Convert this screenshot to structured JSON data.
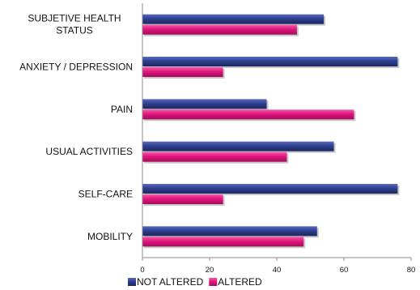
{
  "chart_data": {
    "type": "bar",
    "orientation": "horizontal",
    "title": "",
    "xlabel": "",
    "ylabel": "",
    "categories": [
      [
        "SUBJETIVE HEALTH",
        "STATUS"
      ],
      [
        "ANXIETY / DEPRESSION"
      ],
      [
        "PAIN"
      ],
      [
        "USUAL ACTIVITIES"
      ],
      [
        "SELF-CARE"
      ],
      [
        "MOBILITY"
      ]
    ],
    "series": [
      {
        "name": "NOT ALTERED",
        "color": "#2e3f8f",
        "values": [
          54,
          76,
          37,
          57,
          76,
          52
        ]
      },
      {
        "name": "ALTERED",
        "color": "#e2157f",
        "values": [
          46,
          24,
          63,
          43,
          24,
          48
        ]
      }
    ],
    "xlim": [
      0,
      80
    ],
    "xticks": [
      0,
      20,
      40,
      60,
      80
    ],
    "grid": false,
    "legend_position": "bottom"
  }
}
